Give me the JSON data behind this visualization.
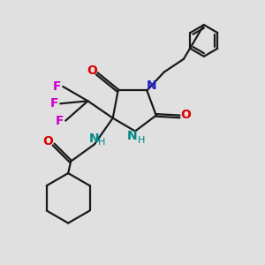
{
  "bg_color": "#e0e0e0",
  "bond_color": "#1a1a1a",
  "N_color": "#2020cc",
  "O_color": "#dd0000",
  "F_color": "#cc00cc",
  "NH_color": "#008888",
  "lw": 1.6,
  "xlim": [
    0,
    10
  ],
  "ylim": [
    0,
    10
  ]
}
